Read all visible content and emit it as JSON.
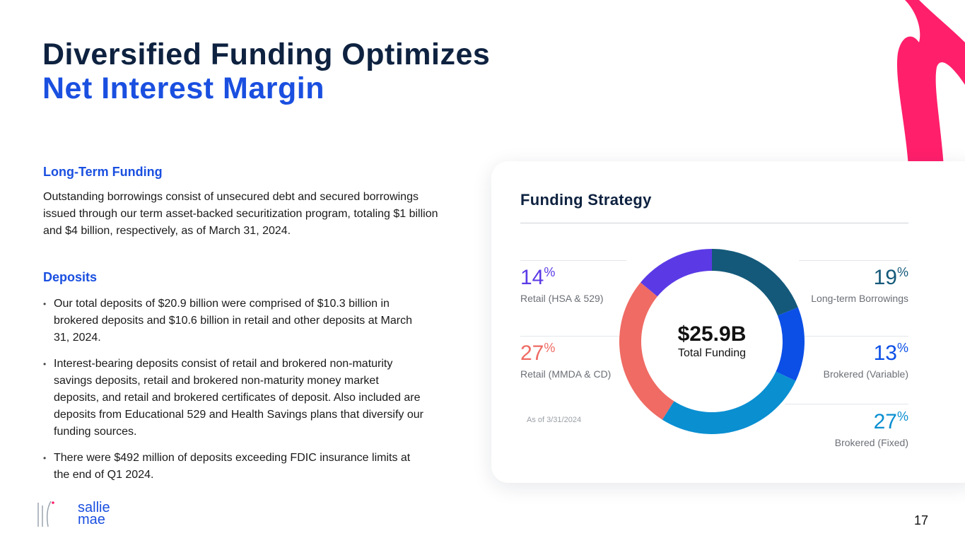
{
  "title": {
    "line1": "Diversified Funding Optimizes",
    "line2": "Net Interest Margin"
  },
  "long_term": {
    "heading": "Long-Term Funding",
    "body": "Outstanding borrowings consist of unsecured debt and secured borrowings issued through our term asset-backed securitization program, totaling $1 billion and $4 billion, respectively, as of March 31, 2024."
  },
  "deposits": {
    "heading": "Deposits",
    "bullets": [
      "Our total deposits of $20.9 billion were comprised of $10.3 billion in brokered deposits and $10.6 billion in retail and other deposits at March 31, 2024.",
      "Interest-bearing deposits consist of retail and brokered non-maturity savings deposits, retail and brokered non-maturity money market deposits, and retail and brokered certificates of deposit. Also included are deposits from Educational 529 and Health Savings plans that diversify our funding sources.",
      "There were $492 million of deposits exceeding FDIC insurance limits at the end of Q1 2024."
    ]
  },
  "chart_data": {
    "type": "pie",
    "title": "Funding Strategy",
    "center_value": "$25.9B",
    "center_label": "Total Funding",
    "note": "As of 3/31/2024",
    "slices": [
      {
        "name": "Long-term Borrowings",
        "value": 19,
        "label": "19",
        "color": "#14597a"
      },
      {
        "name": "Brokered (Variable)",
        "value": 13,
        "label": "13",
        "color": "#0b4fe6"
      },
      {
        "name": "Brokered (Fixed)",
        "value": 27,
        "label": "27",
        "color": "#0a8fd1"
      },
      {
        "name": "Retail (MMDA & CD)",
        "value": 27,
        "label": "27",
        "color": "#ef6b64"
      },
      {
        "name": "Retail (HSA & 529)",
        "value": 14,
        "label": "14",
        "color": "#5b3ae6"
      }
    ],
    "percent_sign": "%"
  },
  "logo": {
    "line1": "sallie",
    "line2": "mae"
  },
  "page_number": "17"
}
